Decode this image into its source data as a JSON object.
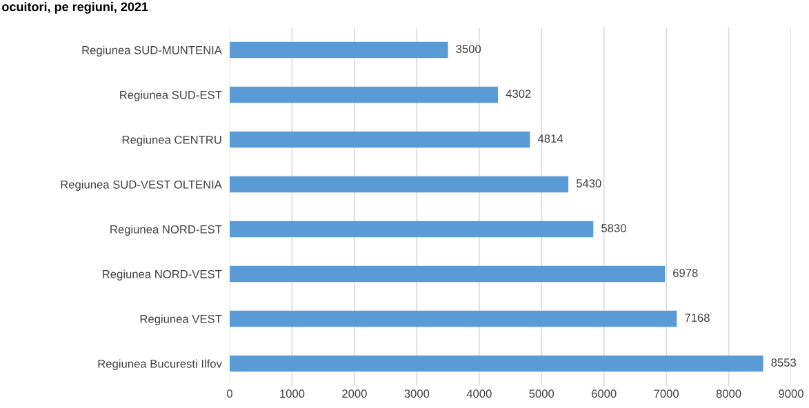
{
  "chart_data": {
    "type": "bar",
    "orientation": "horizontal",
    "title": "ocuitori, pe regiuni, 2021",
    "categories": [
      "Regiunea SUD-MUNTENIA",
      "Regiunea SUD-EST",
      "Regiunea CENTRU",
      "Regiunea SUD-VEST OLTENIA",
      "Regiunea NORD-EST",
      "Regiunea NORD-VEST",
      "Regiunea VEST",
      "Regiunea Bucuresti Ilfov"
    ],
    "values": [
      3500,
      4302,
      4814,
      5430,
      5830,
      6978,
      7168,
      8553
    ],
    "color": "#5b9bd5",
    "data_labels": true,
    "xlim": [
      0,
      9000
    ],
    "xticks": [
      0,
      1000,
      2000,
      3000,
      4000,
      5000,
      6000,
      7000,
      8000,
      9000
    ],
    "grid": "x",
    "legend": false
  }
}
